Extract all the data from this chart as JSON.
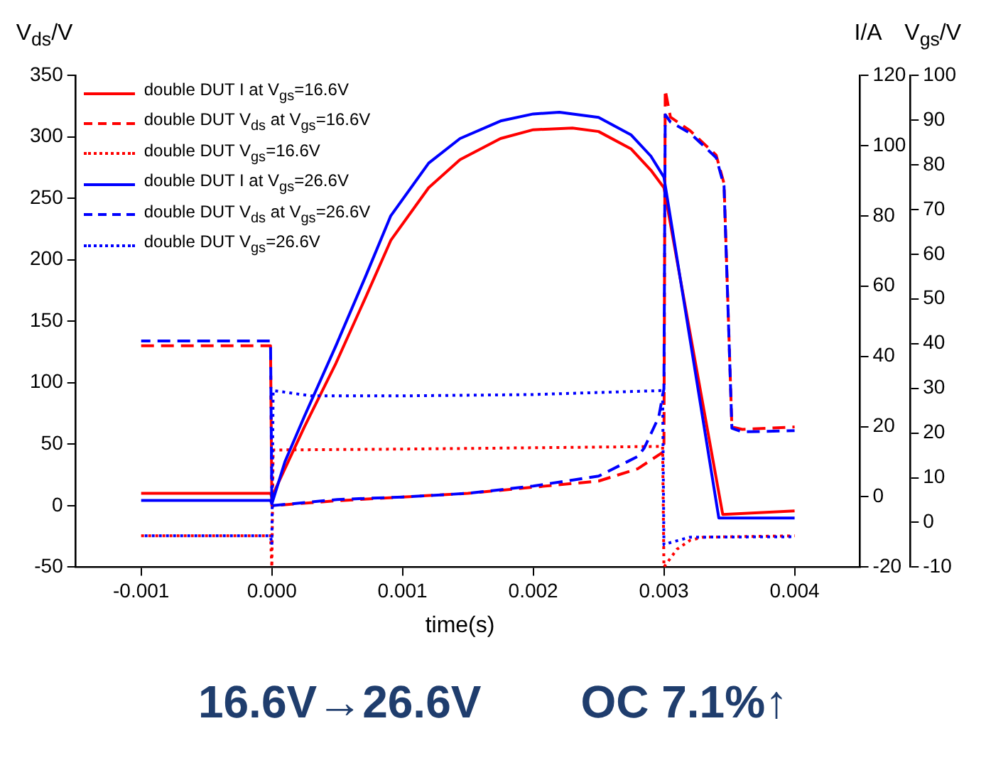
{
  "chart_data": {
    "type": "line",
    "xlabel": "time(s)",
    "ylabel": "V$_{ds}$/V",
    "y2label": "I/A",
    "y3label": "V$_{gs}$/V",
    "xlim": [
      -0.0015,
      0.0045
    ],
    "xticks": [
      -0.001,
      {
        "value": 0,
        "label": "0.000"
      },
      0.001,
      0.002,
      0.003,
      0.004
    ],
    "ylim": [
      -50,
      350
    ],
    "yticks": [
      -50,
      0,
      50,
      100,
      150,
      200,
      250,
      300,
      350
    ],
    "y2lim": [
      -20,
      120
    ],
    "y2ticks": [
      -20,
      0,
      20,
      40,
      60,
      80,
      100,
      120
    ],
    "y3lim": [
      -10,
      100
    ],
    "y3ticks": [
      -10,
      0,
      10,
      20,
      30,
      40,
      50,
      60,
      70,
      80,
      90,
      100
    ],
    "legend": "top left",
    "annotations": [
      "16.6V→26.6V",
      "OC 7.1%↑"
    ],
    "series": [
      {
        "name": "double DUT I at V$_{gs}$=16.6V",
        "color": "#ff0000",
        "line_style": "solid",
        "axis": "y2",
        "x": [
          -0.001,
          -1e-05,
          0,
          0.0001,
          0.00025,
          0.00049,
          0.00072,
          0.00091,
          0.0012,
          0.00144,
          0.00175,
          0.002,
          0.0023,
          0.0025,
          0.00275,
          0.0029,
          0.003,
          0.00345,
          0.004
        ],
        "values": [
          1,
          1,
          0,
          8,
          20,
          38,
          57,
          73,
          88,
          96,
          102,
          104.5,
          105,
          104,
          99,
          93,
          88,
          -5,
          -4
        ]
      },
      {
        "name": "double DUT V$_{ds}$ at V$_{gs}$=16.6V",
        "color": "#ff0000",
        "line_style": "dashed",
        "x": [
          -0.001,
          -1e-05,
          0,
          0.0005,
          0.001,
          0.0015,
          0.002,
          0.0025,
          0.0028,
          0.0029,
          0.003,
          0.00301,
          0.00305,
          0.0032,
          0.0034,
          0.00346,
          0.00352,
          0.0036,
          0.004
        ],
        "values": [
          130,
          130,
          0,
          4,
          7,
          10,
          15,
          20,
          30,
          37,
          44,
          338,
          316,
          305,
          285,
          262,
          64,
          62,
          64
        ]
      },
      {
        "name": "double DUT V$_{gs}$=16.6V",
        "color": "#ff0000",
        "line_style": "dotted",
        "axis": "y3",
        "x": [
          -0.001,
          -1e-05,
          0,
          1e-05,
          0.001,
          0.002,
          0.00299,
          0.003,
          0.0031,
          0.0032,
          0.0033,
          0.004
        ],
        "values": [
          -3,
          -3,
          -10,
          16.2,
          16.4,
          16.7,
          17,
          -10,
          -6,
          -4,
          -3.3,
          -3
        ]
      },
      {
        "name": "double DUT I at V$_{gs}$=26.6V",
        "color": "#0000ff",
        "line_style": "solid",
        "axis": "y2",
        "x": [
          -0.001,
          -1e-05,
          0,
          0.0001,
          0.00025,
          0.00049,
          0.00072,
          0.00091,
          0.0012,
          0.00144,
          0.00175,
          0.002,
          0.0022,
          0.0025,
          0.00275,
          0.0029,
          0.003,
          0.00342,
          0.004
        ],
        "values": [
          -1,
          -1,
          -2,
          10,
          23,
          43,
          63,
          80,
          95,
          102,
          107,
          109,
          109.5,
          108,
          103,
          97,
          91,
          -6,
          -6
        ]
      },
      {
        "name": "double DUT V$_{ds}$ at V$_{gs}$=26.6V",
        "color": "#0000ff",
        "line_style": "dashed",
        "x": [
          -0.001,
          -1e-05,
          0,
          0.0005,
          0.001,
          0.0015,
          0.002,
          0.0025,
          0.0028,
          0.00285,
          0.00296,
          0.003,
          0.00301,
          0.00305,
          0.0032,
          0.0034,
          0.00346,
          0.00352,
          0.0036,
          0.004
        ],
        "values": [
          134,
          134,
          0,
          5,
          7,
          10,
          16,
          24,
          40,
          47,
          72,
          95,
          318,
          312,
          303,
          283,
          260,
          63,
          60,
          61
        ]
      },
      {
        "name": "double DUT V$_{gs}$=26.6V",
        "color": "#0000ff",
        "line_style": "dotted",
        "axis": "y3",
        "x": [
          -0.001,
          -1e-05,
          0,
          1e-05,
          0.0003,
          0.001,
          0.002,
          0.00299,
          0.003,
          0.00305,
          0.0032,
          0.004
        ],
        "values": [
          -3,
          -3,
          -5,
          29.5,
          28.3,
          28.3,
          28.6,
          29.5,
          -5,
          -4.5,
          -3.3,
          -3.2
        ]
      }
    ]
  }
}
